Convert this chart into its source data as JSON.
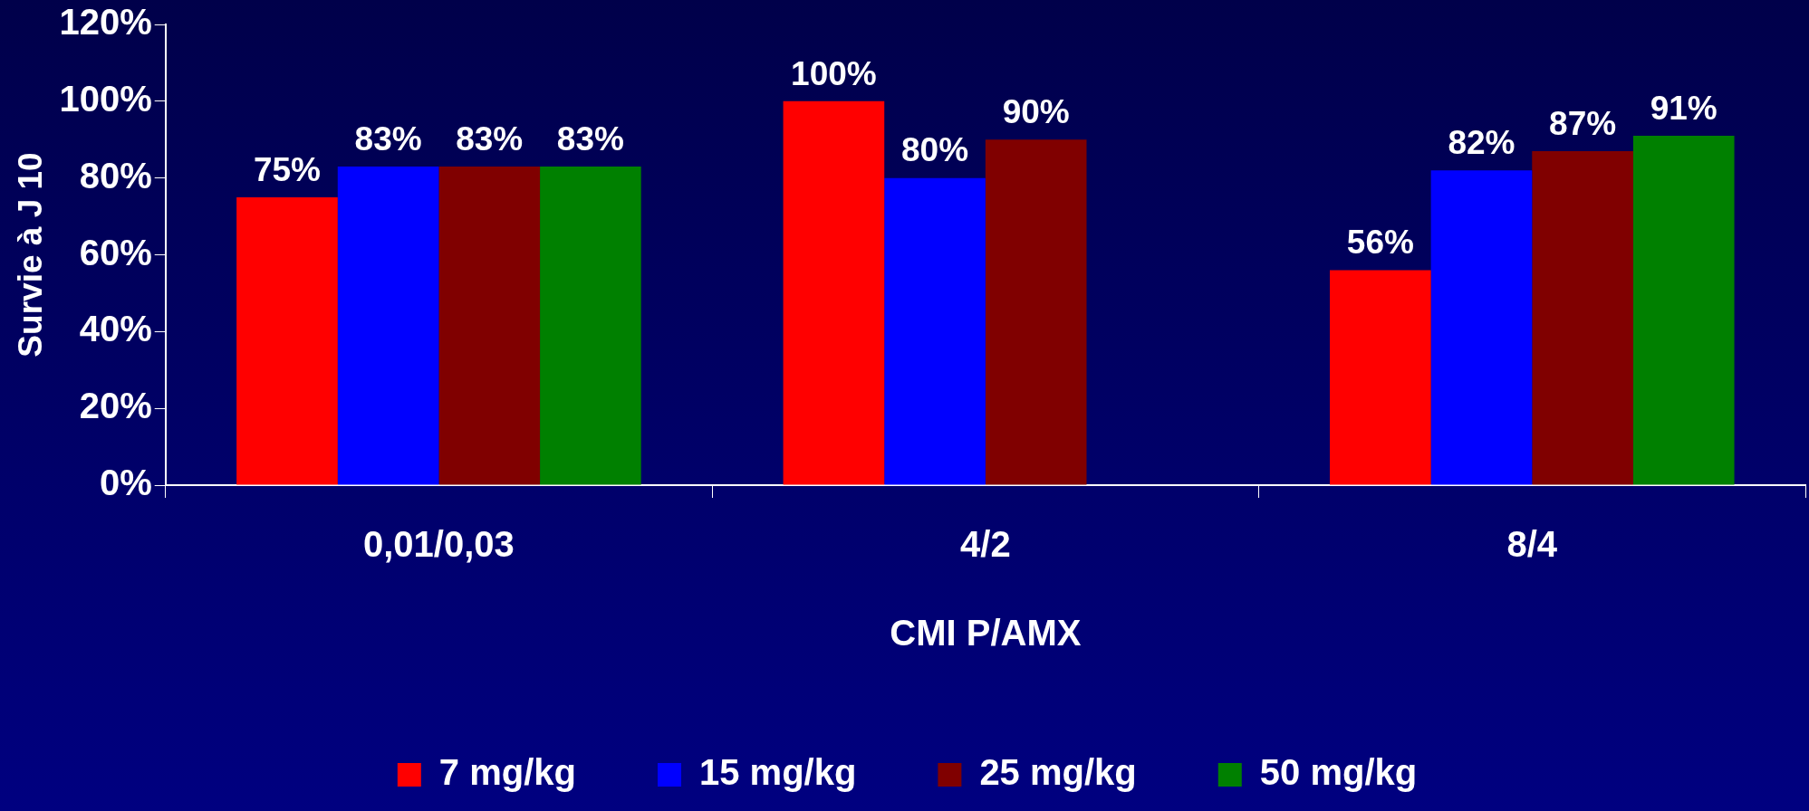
{
  "chart_data": {
    "type": "bar",
    "ylabel": "Survie à J 10",
    "xlabel": "CMI P/AMX",
    "categories": [
      "0,01/0,03",
      "4/2",
      "8/4"
    ],
    "series": [
      {
        "name": "7 mg/kg",
        "color": "#ff0000",
        "values": [
          75,
          100,
          56
        ],
        "value_labels": [
          "75%",
          "100%",
          "56%"
        ]
      },
      {
        "name": "15 mg/kg",
        "color": "#0000ff",
        "values": [
          83,
          80,
          82
        ],
        "value_labels": [
          "83%",
          "80%",
          "82%"
        ]
      },
      {
        "name": "25 mg/kg",
        "color": "#800000",
        "values": [
          83,
          90,
          87
        ],
        "value_labels": [
          "83%",
          "90%",
          "87%"
        ]
      },
      {
        "name": "50 mg/kg",
        "color": "#008000",
        "values": [
          83,
          null,
          91
        ],
        "value_labels": [
          "83%",
          null,
          "91%"
        ]
      }
    ],
    "ylim": [
      0,
      120
    ],
    "yticks": [
      {
        "value": 0,
        "label": "0%"
      },
      {
        "value": 20,
        "label": "20%"
      },
      {
        "value": 40,
        "label": "40%"
      },
      {
        "value": 60,
        "label": "60%"
      },
      {
        "value": 80,
        "label": "80%"
      },
      {
        "value": 100,
        "label": "100%"
      },
      {
        "value": 120,
        "label": "120%"
      }
    ],
    "legend": "bottom"
  }
}
